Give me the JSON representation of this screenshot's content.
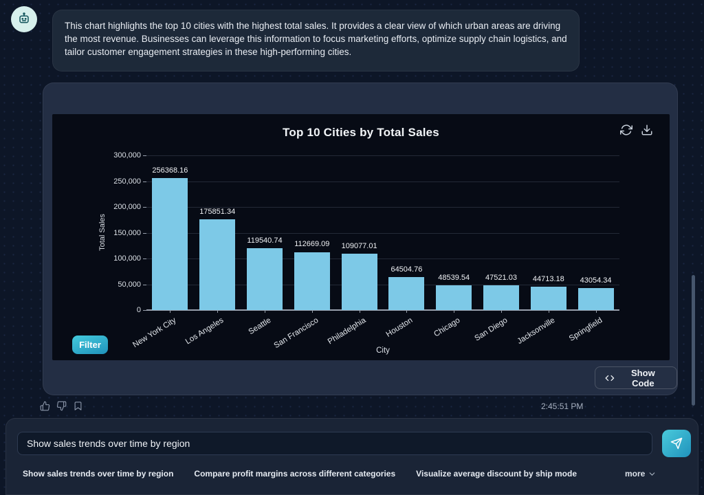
{
  "colors": {
    "page_bg": "#0d1627",
    "panel_bg": "#070b15",
    "bar": "#7dc9e7",
    "accent_start": "#4acbdc",
    "accent_end": "#2092bc"
  },
  "assistant": {
    "avatar_icon": "robot-icon",
    "message": "This chart highlights the top 10 cities with the highest total sales. It provides a clear view of which urban areas are driving the most revenue. Businesses can leverage this information to focus marketing efforts, optimize supply chain logistics, and tailor customer engagement strategies in these high-performing cities.",
    "timestamp": "2:45:51 PM",
    "feedback_icons": [
      "thumbs-up-icon",
      "thumbs-down-icon",
      "bookmark-icon"
    ]
  },
  "chart_card": {
    "toolbar_icons": [
      "refresh-icon",
      "download-icon"
    ],
    "filter_button": "Filter",
    "show_code_button": "Show Code",
    "show_code_icon": "code-icon"
  },
  "chart_data": {
    "type": "bar",
    "title": "Top 10 Cities by Total Sales",
    "xlabel": "City",
    "ylabel": "Total Sales",
    "categories": [
      "New York City",
      "Los Angeles",
      "Seattle",
      "San Francisco",
      "Philadelphia",
      "Houston",
      "Chicago",
      "San Diego",
      "Jacksonville",
      "Springfield"
    ],
    "values": [
      256368.16,
      175851.34,
      119540.74,
      112669.09,
      109077.01,
      64504.76,
      48539.54,
      47521.03,
      44713.18,
      43054.34
    ],
    "value_labels": [
      "256368.16",
      "175851.34",
      "119540.74",
      "112669.09",
      "109077.01",
      "64504.76",
      "48539.54",
      "47521.03",
      "44713.18",
      "43054.34"
    ],
    "ylim": [
      0,
      300000
    ],
    "ytick_step": 50000,
    "ytick_labels": [
      "0",
      "50,000",
      "100,000",
      "150,000",
      "200,000",
      "250,000",
      "300,000"
    ],
    "grid": true,
    "legend": false,
    "bar_color": "#7dc9e7"
  },
  "composer": {
    "input_value": "Show sales trends over time by region",
    "send_icon": "send-icon"
  },
  "suggestions": {
    "items": [
      {
        "label": "Show sales trends over time by region"
      },
      {
        "label": "Compare profit margins across different categories"
      },
      {
        "label": "Visualize average discount by ship mode"
      }
    ],
    "more_label": "more",
    "more_icon": "chevron-down-icon"
  }
}
